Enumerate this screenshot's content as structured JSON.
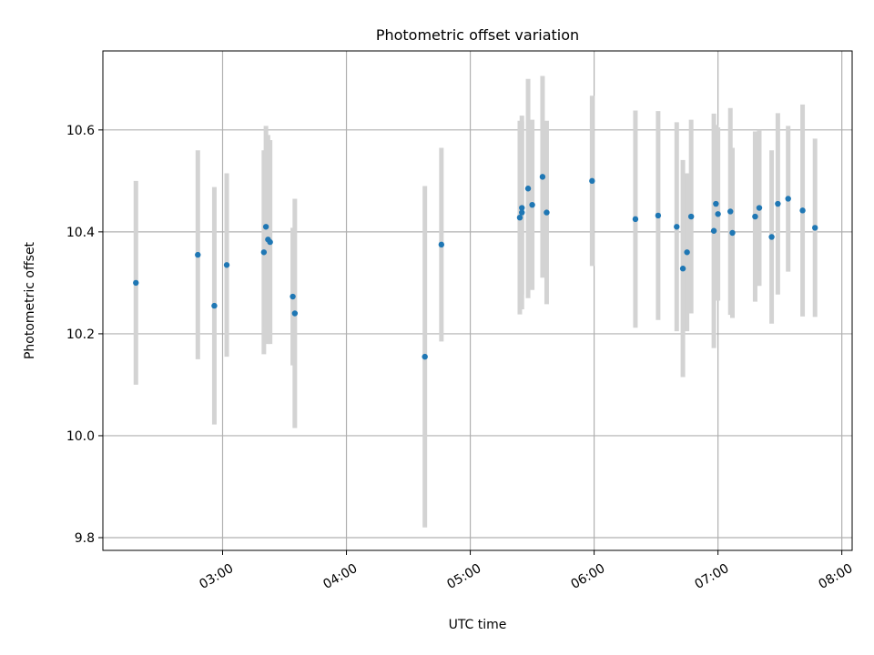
{
  "chart_data": {
    "type": "scatter",
    "title": "Photometric offset variation",
    "xlabel": "UTC time",
    "ylabel": "Photometric offset",
    "xlim": [
      "02:02",
      "08:05"
    ],
    "ylim": [
      9.775,
      10.755
    ],
    "x_ticks": [
      "03:00",
      "04:00",
      "05:00",
      "06:00",
      "07:00",
      "08:00"
    ],
    "y_ticks": [
      9.8,
      10.0,
      10.2,
      10.4,
      10.6
    ],
    "y_tick_labels": [
      "9.8",
      "10.0",
      "10.2",
      "10.4",
      "10.6"
    ],
    "grid": true,
    "colors": {
      "points": "#1f77b4",
      "errorbars": "#d3d3d3",
      "grid": "#b0b0b0"
    },
    "series": [
      {
        "points": [
          {
            "t": "02:18",
            "y": 10.3,
            "err": 0.2
          },
          {
            "t": "02:48",
            "y": 10.355,
            "err": 0.205
          },
          {
            "t": "02:56",
            "y": 10.255,
            "err": 0.233
          },
          {
            "t": "03:02",
            "y": 10.335,
            "err": 0.18
          },
          {
            "t": "03:20",
            "y": 10.36,
            "err": 0.2
          },
          {
            "t": "03:21",
            "y": 10.41,
            "err": 0.198
          },
          {
            "t": "03:22",
            "y": 10.385,
            "err": 0.205
          },
          {
            "t": "03:23",
            "y": 10.38,
            "err": 0.2
          },
          {
            "t": "03:34",
            "y": 10.273,
            "err": 0.135
          },
          {
            "t": "03:35",
            "y": 10.24,
            "err": 0.225
          },
          {
            "t": "04:38",
            "y": 10.155,
            "err": 0.335
          },
          {
            "t": "04:46",
            "y": 10.375,
            "err": 0.19
          },
          {
            "t": "05:24",
            "y": 10.428,
            "err": 0.19
          },
          {
            "t": "05:25",
            "y": 10.438,
            "err": 0.19
          },
          {
            "t": "05:25",
            "y": 10.447,
            "err": 0.17
          },
          {
            "t": "05:28",
            "y": 10.485,
            "err": 0.215
          },
          {
            "t": "05:30",
            "y": 10.453,
            "err": 0.167
          },
          {
            "t": "05:35",
            "y": 10.508,
            "err": 0.198
          },
          {
            "t": "05:37",
            "y": 10.438,
            "err": 0.18
          },
          {
            "t": "05:59",
            "y": 10.5,
            "err": 0.167
          },
          {
            "t": "06:20",
            "y": 10.425,
            "err": 0.213
          },
          {
            "t": "06:31",
            "y": 10.432,
            "err": 0.205
          },
          {
            "t": "06:40",
            "y": 10.41,
            "err": 0.205
          },
          {
            "t": "06:43",
            "y": 10.328,
            "err": 0.213
          },
          {
            "t": "06:45",
            "y": 10.36,
            "err": 0.155
          },
          {
            "t": "06:47",
            "y": 10.43,
            "err": 0.19
          },
          {
            "t": "06:58",
            "y": 10.402,
            "err": 0.23
          },
          {
            "t": "06:59",
            "y": 10.455,
            "err": 0.155
          },
          {
            "t": "07:00",
            "y": 10.435,
            "err": 0.17
          },
          {
            "t": "07:06",
            "y": 10.44,
            "err": 0.203
          },
          {
            "t": "07:07",
            "y": 10.398,
            "err": 0.167
          },
          {
            "t": "07:18",
            "y": 10.43,
            "err": 0.167
          },
          {
            "t": "07:20",
            "y": 10.447,
            "err": 0.153
          },
          {
            "t": "07:26",
            "y": 10.39,
            "err": 0.17
          },
          {
            "t": "07:29",
            "y": 10.455,
            "err": 0.178
          },
          {
            "t": "07:34",
            "y": 10.465,
            "err": 0.143
          },
          {
            "t": "07:41",
            "y": 10.442,
            "err": 0.208
          },
          {
            "t": "07:47",
            "y": 10.408,
            "err": 0.175
          }
        ]
      }
    ]
  }
}
